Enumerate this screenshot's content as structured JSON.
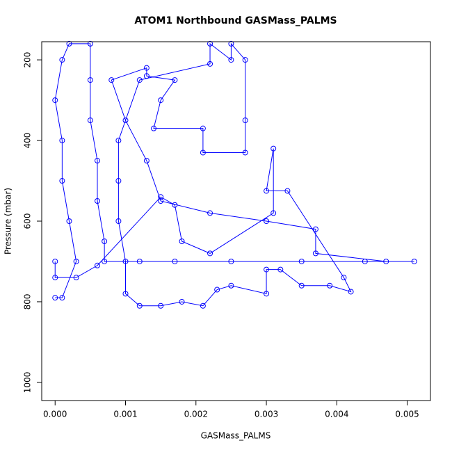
{
  "chart_data": {
    "type": "line",
    "title": "ATOM1 Northbound GASMass_PALMS",
    "x_label": "GASMass_PALMS",
    "y_label": "Pressure (mbar)",
    "markers": "open-circle",
    "y_inverted": true,
    "xlim": [
      -0.00019,
      0.00533
    ],
    "ylim": [
      155,
      1045
    ],
    "xticks": [
      {
        "value": 0,
        "label": "0.000"
      },
      {
        "value": 0.001,
        "label": "0.001"
      },
      {
        "value": 0.002,
        "label": "0.002"
      },
      {
        "value": 0.003,
        "label": "0.003"
      },
      {
        "value": 0.004,
        "label": "0.004"
      },
      {
        "value": 0.005,
        "label": "0.005"
      }
    ],
    "yticks": [
      200,
      400,
      600,
      800,
      1000
    ],
    "series": [
      {
        "color": "#0000ff",
        "x": [
          0.0,
          0.0001,
          0.0003,
          0.0002,
          0.0001,
          0.0001,
          0.0,
          0.0001,
          0.0002,
          0.0005,
          0.0005,
          0.0005,
          0.0006,
          0.0006,
          0.0007,
          0.0007,
          0.0012,
          0.0017,
          0.0025,
          0.0035,
          0.0044,
          0.0051,
          0.0047,
          0.0037,
          0.0037,
          0.003,
          0.0022,
          0.0015,
          0.0013,
          0.001,
          0.0008,
          0.0013,
          0.0013,
          0.0017,
          0.0015,
          0.0014,
          0.0021,
          0.0021,
          0.0027,
          0.0027,
          0.0027,
          0.0025,
          0.0025,
          0.0022,
          0.0022,
          0.0012,
          0.0009,
          0.0009,
          0.0009,
          0.001,
          0.001,
          0.0012,
          0.0015,
          0.0018,
          0.0021,
          0.0023,
          0.0025,
          0.003,
          0.003,
          0.0032,
          0.0035,
          0.0039,
          0.0042,
          0.0041,
          0.0033,
          0.003,
          0.0031,
          0.0031,
          0.0022,
          0.0018,
          0.0017,
          0.0015,
          0.0006,
          0.0003,
          0.0,
          0.0
        ],
        "values": [
          790,
          790,
          700,
          600,
          500,
          400,
          300,
          200,
          160,
          160,
          250,
          350,
          450,
          550,
          650,
          700,
          700,
          700,
          700,
          700,
          700,
          700,
          700,
          680,
          620,
          600,
          580,
          550,
          450,
          350,
          250,
          220,
          240,
          250,
          300,
          370,
          370,
          430,
          430,
          350,
          200,
          160,
          200,
          160,
          210,
          250,
          400,
          500,
          600,
          700,
          780,
          810,
          810,
          800,
          810,
          770,
          760,
          780,
          720,
          720,
          760,
          760,
          775,
          740,
          525,
          525,
          420,
          580,
          680,
          650,
          560,
          540,
          710,
          740,
          740,
          700
        ]
      }
    ]
  }
}
